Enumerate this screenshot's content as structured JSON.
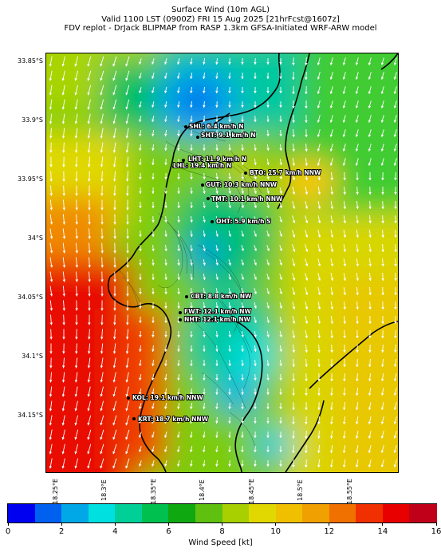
{
  "title": {
    "line1": "Surface Wind (10m AGL)",
    "line2": "Valid 1100 LST (0900Z) FRI 15 Aug 2025 [21hrFcst@1607z]",
    "line3": "FDV replot - DrJack BLIPMAP from RASP 1.3km GFSA-Initiated WRF-ARW model"
  },
  "axes": {
    "lat_labels": [
      "33.85°S",
      "33.9°S",
      "33.95°S",
      "34°S",
      "34.05°S",
      "34.1°S",
      "34.15°S"
    ],
    "lon_labels": [
      "18.25°E",
      "18.3°E",
      "18.35°E",
      "18.4°E",
      "18.45°E",
      "18.5°E",
      "18.55°E"
    ]
  },
  "stations": [
    {
      "label": "SHL: 6.4 km/h N"
    },
    {
      "label": "SHT: 9.1 km/h N"
    },
    {
      "label": "LHT: 11.9 km/h N"
    },
    {
      "label": "LHL: 19.4 km/h N"
    },
    {
      "label": "BTO: 15.7 km/h NNW"
    },
    {
      "label": "GUT: 10.3 km/h NNW"
    },
    {
      "label": "TMT: 10.1 km/h NNW"
    },
    {
      "label": "OHT: 5.9 km/h S"
    },
    {
      "label": "CBT: 8.8 km/h NW"
    },
    {
      "label": "FWT: 12.1 km/h NW"
    },
    {
      "label": "NHT: 12.1 km/h NW"
    },
    {
      "label": "KOL: 19.1 km/h NNW"
    },
    {
      "label": "KRT: 18.7 km/h NNW"
    }
  ],
  "colorbar": {
    "label": "Wind Speed [kt]",
    "ticks": [
      "0",
      "2",
      "4",
      "6",
      "8",
      "10",
      "12",
      "14",
      "16"
    ],
    "colors": [
      "#0000f0",
      "#0060f0",
      "#00a8e8",
      "#00e0e0",
      "#00d098",
      "#00c050",
      "#10a810",
      "#60c010",
      "#a8d000",
      "#e0d800",
      "#f0c000",
      "#f0a000",
      "#f07000",
      "#f03000",
      "#e80000",
      "#c00018"
    ]
  }
}
